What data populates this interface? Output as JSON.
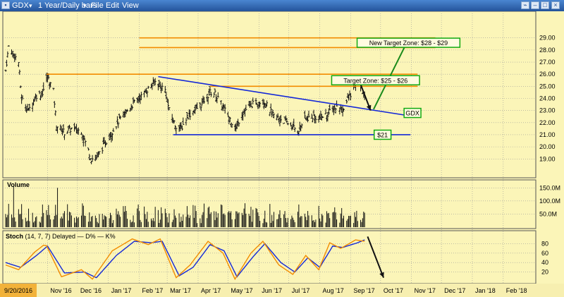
{
  "window": {
    "symbol": "GDX",
    "period": "1 Year/Daily bars",
    "menu": [
      "File",
      "Edit",
      "View"
    ]
  },
  "chart_data": [
    {
      "type": "candlestick",
      "x": "date",
      "x_ticks": [
        "9/20/2016",
        "Nov '16",
        "Dec '16",
        "Jan '17",
        "Feb '17",
        "Mar '17",
        "Apr '17",
        "May '17",
        "Jun '17",
        "Jul '17",
        "Aug '17",
        "Sep '17",
        "Oct '17",
        "Nov '17",
        "Dec '17",
        "Jan '18",
        "Feb '18"
      ],
      "y_ticks": [
        "19.00",
        "20.00",
        "21.00",
        "22.00",
        "23.00",
        "24.00",
        "25.00",
        "26.00",
        "27.00",
        "28.00",
        "29.00"
      ],
      "ylim": [
        18.2,
        29.8
      ],
      "anchors": [
        {
          "d": "2016-09-20",
          "v": 26.3
        },
        {
          "d": "2016-09-23",
          "v": 28.3
        },
        {
          "d": "2016-10-03",
          "v": 27.0
        },
        {
          "d": "2016-10-06",
          "v": 24.0
        },
        {
          "d": "2016-10-13",
          "v": 23.0
        },
        {
          "d": "2016-10-20",
          "v": 24.2
        },
        {
          "d": "2016-10-27",
          "v": 24.5
        },
        {
          "d": "2016-11-01",
          "v": 25.8
        },
        {
          "d": "2016-11-07",
          "v": 24.6
        },
        {
          "d": "2016-11-10",
          "v": 21.8
        },
        {
          "d": "2016-11-18",
          "v": 21.2
        },
        {
          "d": "2016-11-25",
          "v": 21.5
        },
        {
          "d": "2016-12-05",
          "v": 21.3
        },
        {
          "d": "2016-12-15",
          "v": 19.0
        },
        {
          "d": "2016-12-20",
          "v": 19.1
        },
        {
          "d": "2017-01-03",
          "v": 21.0
        },
        {
          "d": "2017-01-10",
          "v": 22.0
        },
        {
          "d": "2017-01-23",
          "v": 23.3
        },
        {
          "d": "2017-02-01",
          "v": 24.0
        },
        {
          "d": "2017-02-10",
          "v": 24.8
        },
        {
          "d": "2017-02-17",
          "v": 25.4
        },
        {
          "d": "2017-02-27",
          "v": 24.7
        },
        {
          "d": "2017-03-03",
          "v": 23.0
        },
        {
          "d": "2017-03-09",
          "v": 21.8
        },
        {
          "d": "2017-03-15",
          "v": 21.5
        },
        {
          "d": "2017-03-21",
          "v": 22.5
        },
        {
          "d": "2017-04-03",
          "v": 23.4
        },
        {
          "d": "2017-04-13",
          "v": 24.5
        },
        {
          "d": "2017-04-18",
          "v": 24.4
        },
        {
          "d": "2017-04-28",
          "v": 23.0
        },
        {
          "d": "2017-05-09",
          "v": 21.5
        },
        {
          "d": "2017-05-15",
          "v": 22.8
        },
        {
          "d": "2017-05-25",
          "v": 23.5
        },
        {
          "d": "2017-06-06",
          "v": 23.8
        },
        {
          "d": "2017-06-15",
          "v": 22.6
        },
        {
          "d": "2017-06-23",
          "v": 22.3
        },
        {
          "d": "2017-07-03",
          "v": 21.8
        },
        {
          "d": "2017-07-10",
          "v": 21.3
        },
        {
          "d": "2017-07-17",
          "v": 22.3
        },
        {
          "d": "2017-07-24",
          "v": 22.5
        },
        {
          "d": "2017-08-01",
          "v": 22.4
        },
        {
          "d": "2017-08-10",
          "v": 22.8
        },
        {
          "d": "2017-08-18",
          "v": 23.3
        },
        {
          "d": "2017-08-24",
          "v": 23.1
        },
        {
          "d": "2017-08-31",
          "v": 24.2
        },
        {
          "d": "2017-09-08",
          "v": 25.4
        },
        {
          "d": "2017-09-13",
          "v": 24.6
        },
        {
          "d": "2017-09-15",
          "v": 24.0
        }
      ],
      "lines": [
        {
          "name": "resistance-26",
          "color": "#f28c00",
          "from": {
            "d": "2016-10-31",
            "v": 26.0
          },
          "to": {
            "d": "2017-11-07",
            "v": 26.0
          }
        },
        {
          "name": "resistance-25",
          "color": "#f28c00",
          "from": {
            "d": "2017-04-13",
            "v": 25.0
          },
          "to": {
            "d": "2017-11-07",
            "v": 25.0
          }
        },
        {
          "name": "target-29",
          "color": "#f28c00",
          "from": {
            "d": "2017-02-01",
            "v": 29.0
          },
          "to": {
            "d": "2017-11-25",
            "v": 29.0
          }
        },
        {
          "name": "target-28",
          "color": "#f28c00",
          "from": {
            "d": "2017-02-01",
            "v": 28.2
          },
          "to": {
            "d": "2017-11-25",
            "v": 28.2
          }
        },
        {
          "name": "downtrend",
          "color": "#1428d8",
          "from": {
            "d": "2017-02-20",
            "v": 25.8
          },
          "to": {
            "d": "2017-10-27",
            "v": 22.6
          }
        },
        {
          "name": "support-21",
          "color": "#1428d8",
          "from": {
            "d": "2017-03-07",
            "v": 21.0
          },
          "to": {
            "d": "2017-10-31",
            "v": 21.0
          }
        }
      ],
      "arrows": [
        {
          "name": "pullback-arrow",
          "color": "#111111",
          "from": {
            "d": "2017-09-08",
            "v": 25.8
          },
          "to": {
            "d": "2017-09-21",
            "v": 23.0
          }
        },
        {
          "name": "breakout-arrow",
          "color": "#1a8a1a",
          "from": {
            "d": "2017-09-24",
            "v": 23.1
          },
          "to": {
            "d": "2017-10-29",
            "v": 28.9
          }
        }
      ],
      "annotations": [
        {
          "text": "New Target Zone: $28 - $29",
          "d": "2017-10-29",
          "v": 28.6
        },
        {
          "text": "Target Zone: $25 - $26",
          "d": "2017-09-26",
          "v": 25.5
        },
        {
          "text": "GDX",
          "d": "2017-11-02",
          "v": 22.8
        },
        {
          "text": "$21",
          "d": "2017-10-03",
          "v": 21.0
        }
      ]
    },
    {
      "type": "bar",
      "title": "Volume",
      "y_ticks": [
        "50.0M",
        "100.0M",
        "150.0M"
      ],
      "ylim": [
        0,
        175
      ],
      "unit": "M",
      "typical_range": [
        15,
        120
      ],
      "peaks": [
        {
          "d": "2016-09-28",
          "v": 155
        },
        {
          "d": "2016-11-11",
          "v": 150
        }
      ]
    },
    {
      "type": "line",
      "title": "Stoch",
      "params": "(14, 7, 7)",
      "mode": "Delayed",
      "legend": [
        "D%",
        "K%"
      ],
      "y_ticks": [
        "20",
        "40",
        "60",
        "80"
      ],
      "ylim": [
        0,
        100
      ],
      "series": [
        {
          "name": "D%",
          "color": "#1428d8",
          "points": [
            {
              "d": "2016-09-20",
              "v": 40
            },
            {
              "d": "2016-10-05",
              "v": 30
            },
            {
              "d": "2016-10-21",
              "v": 55
            },
            {
              "d": "2016-11-01",
              "v": 75
            },
            {
              "d": "2016-11-18",
              "v": 18
            },
            {
              "d": "2016-12-08",
              "v": 20
            },
            {
              "d": "2016-12-20",
              "v": 8
            },
            {
              "d": "2017-01-09",
              "v": 55
            },
            {
              "d": "2017-01-27",
              "v": 85
            },
            {
              "d": "2017-02-13",
              "v": 82
            },
            {
              "d": "2017-02-24",
              "v": 85
            },
            {
              "d": "2017-03-13",
              "v": 12
            },
            {
              "d": "2017-03-27",
              "v": 30
            },
            {
              "d": "2017-04-13",
              "v": 78
            },
            {
              "d": "2017-04-27",
              "v": 65
            },
            {
              "d": "2017-05-10",
              "v": 10
            },
            {
              "d": "2017-05-26",
              "v": 52
            },
            {
              "d": "2017-06-07",
              "v": 80
            },
            {
              "d": "2017-06-23",
              "v": 40
            },
            {
              "d": "2017-07-07",
              "v": 20
            },
            {
              "d": "2017-07-20",
              "v": 50
            },
            {
              "d": "2017-08-01",
              "v": 30
            },
            {
              "d": "2017-08-14",
              "v": 75
            },
            {
              "d": "2017-08-24",
              "v": 72
            },
            {
              "d": "2017-09-08",
              "v": 82
            },
            {
              "d": "2017-09-15",
              "v": 88
            }
          ]
        },
        {
          "name": "K%",
          "color": "#f28c00",
          "points": [
            {
              "d": "2016-09-20",
              "v": 35
            },
            {
              "d": "2016-10-03",
              "v": 25
            },
            {
              "d": "2016-10-19",
              "v": 62
            },
            {
              "d": "2016-10-30",
              "v": 80
            },
            {
              "d": "2016-11-15",
              "v": 10
            },
            {
              "d": "2016-12-05",
              "v": 25
            },
            {
              "d": "2016-12-16",
              "v": 5
            },
            {
              "d": "2017-01-05",
              "v": 65
            },
            {
              "d": "2017-01-25",
              "v": 90
            },
            {
              "d": "2017-02-10",
              "v": 78
            },
            {
              "d": "2017-02-22",
              "v": 90
            },
            {
              "d": "2017-03-10",
              "v": 8
            },
            {
              "d": "2017-03-24",
              "v": 35
            },
            {
              "d": "2017-04-11",
              "v": 85
            },
            {
              "d": "2017-04-26",
              "v": 60
            },
            {
              "d": "2017-05-08",
              "v": 5
            },
            {
              "d": "2017-05-24",
              "v": 60
            },
            {
              "d": "2017-06-05",
              "v": 85
            },
            {
              "d": "2017-06-21",
              "v": 35
            },
            {
              "d": "2017-07-05",
              "v": 15
            },
            {
              "d": "2017-07-18",
              "v": 55
            },
            {
              "d": "2017-07-31",
              "v": 25
            },
            {
              "d": "2017-08-11",
              "v": 82
            },
            {
              "d": "2017-08-22",
              "v": 70
            },
            {
              "d": "2017-09-06",
              "v": 88
            },
            {
              "d": "2017-09-15",
              "v": 85
            }
          ]
        }
      ],
      "arrows": [
        {
          "name": "stoch-down-arrow",
          "color": "#111111",
          "from": {
            "d": "2017-09-18",
            "v": 95
          },
          "to": {
            "d": "2017-10-04",
            "v": 8
          }
        }
      ]
    }
  ],
  "colors": {
    "background": "#fbf5b8",
    "candle": "#111111",
    "titlebar": "#2b63b0"
  }
}
